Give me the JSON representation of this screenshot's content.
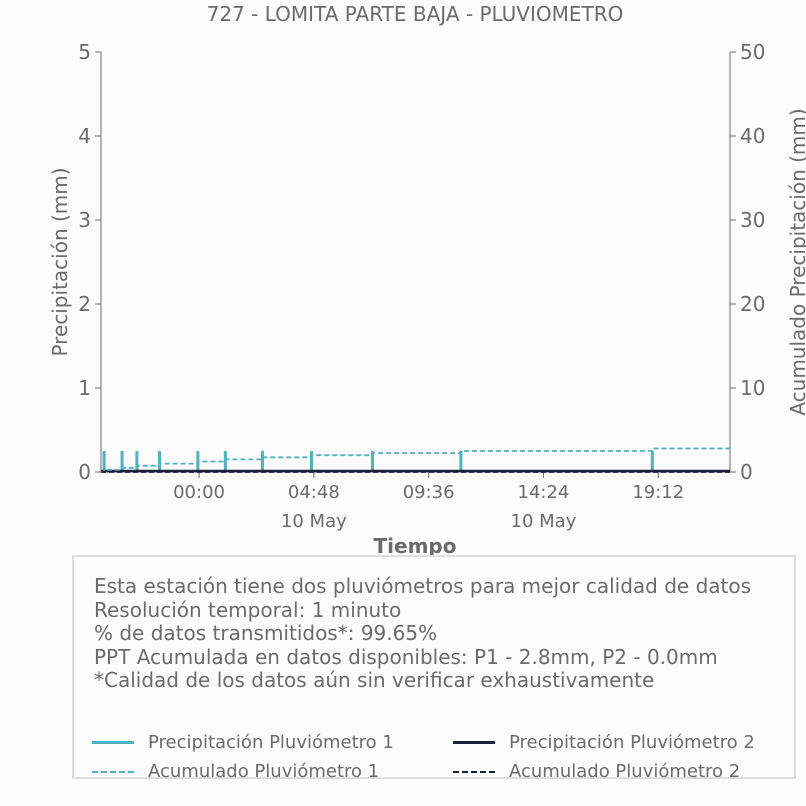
{
  "chart_data": {
    "type": "bar",
    "title": "727 - LOMITA PARTE BAJA - PLUVIOMETRO",
    "xlabel": "Tiempo",
    "ylabel": "Precipitación (mm)",
    "y2label": "Acumulado Precipitación (mm)",
    "ylim": [
      0,
      5
    ],
    "y2lim": [
      0,
      50
    ],
    "yticks": [
      "0",
      "1",
      "2",
      "3",
      "4",
      "5"
    ],
    "y2ticks": [
      "0",
      "10",
      "20",
      "30",
      "40",
      "50"
    ],
    "xlim_hours": [
      -4.1,
      22.2
    ],
    "xticks": [
      {
        "label": "00:00",
        "date": "",
        "hour": 0
      },
      {
        "label": "04:48",
        "date": "10 May",
        "hour": 4.8
      },
      {
        "label": "09:36",
        "date": "",
        "hour": 9.6
      },
      {
        "label": "14:24",
        "date": "10 May",
        "hour": 14.4
      },
      {
        "label": "19:12",
        "date": "",
        "hour": 19.2
      }
    ],
    "grid": false,
    "series": [
      {
        "name": "Precipitación Pluviómetro 1",
        "kind": "bar",
        "color": "#4fb3bf",
        "points": [
          {
            "hour": -3.97,
            "value": 0.25
          },
          {
            "hour": -3.22,
            "value": 0.25
          },
          {
            "hour": -2.6,
            "value": 0.25
          },
          {
            "hour": -1.65,
            "value": 0.25
          },
          {
            "hour": -0.05,
            "value": 0.25
          },
          {
            "hour": 1.1,
            "value": 0.25
          },
          {
            "hour": 2.65,
            "value": 0.25
          },
          {
            "hour": 4.7,
            "value": 0.25
          },
          {
            "hour": 7.25,
            "value": 0.25
          },
          {
            "hour": 10.95,
            "value": 0.25
          },
          {
            "hour": 18.95,
            "value": 0.25
          }
        ]
      },
      {
        "name": "Precipitación Pluviómetro 2",
        "kind": "line",
        "color": "#1b1f3a",
        "points": [
          {
            "hour": -4.1,
            "value": 0
          },
          {
            "hour": 22.2,
            "value": 0
          }
        ]
      },
      {
        "name": "Acumulado Pluviómetro 1",
        "kind": "step-dashed",
        "axis": "right",
        "color": "#4fb3bf",
        "points": [
          {
            "hour": -4.1,
            "value": 0
          },
          {
            "hour": -3.97,
            "value": 0.25
          },
          {
            "hour": -3.22,
            "value": 0.5
          },
          {
            "hour": -2.6,
            "value": 0.75
          },
          {
            "hour": -1.65,
            "value": 1.0
          },
          {
            "hour": -0.05,
            "value": 1.25
          },
          {
            "hour": 1.1,
            "value": 1.5
          },
          {
            "hour": 2.65,
            "value": 1.75
          },
          {
            "hour": 4.7,
            "value": 2.0
          },
          {
            "hour": 7.25,
            "value": 2.25
          },
          {
            "hour": 10.95,
            "value": 2.5
          },
          {
            "hour": 18.95,
            "value": 2.8
          },
          {
            "hour": 22.2,
            "value": 2.8
          }
        ]
      },
      {
        "name": "Acumulado Pluviómetro 2",
        "kind": "step-dashed",
        "axis": "right",
        "color": "#1b1f3a",
        "points": [
          {
            "hour": -4.1,
            "value": 0
          },
          {
            "hour": 22.2,
            "value": 0
          }
        ]
      }
    ]
  },
  "info": {
    "lines": [
      "Esta estación tiene dos pluviómetros para mejor calidad de datos",
      "Resolución temporal: 1 minuto",
      "% de datos transmitidos*: 99.65%",
      "PPT Acumulada en datos disponibles: P1 - 2.8mm, P2 - 0.0mm",
      "*Calidad de los datos aún sin verificar exhaustivamente"
    ]
  },
  "legend": {
    "items": [
      {
        "label": "Precipitación Pluviómetro 1",
        "color": "#4fb3bf",
        "style": "solid"
      },
      {
        "label": "Precipitación Pluviómetro 2",
        "color": "#1b1f3a",
        "style": "solid"
      },
      {
        "label": "Acumulado Pluviómetro 1",
        "color": "#4fb3bf",
        "style": "dashed"
      },
      {
        "label": "Acumulado Pluviómetro 2",
        "color": "#1b1f3a",
        "style": "dashed"
      }
    ]
  }
}
